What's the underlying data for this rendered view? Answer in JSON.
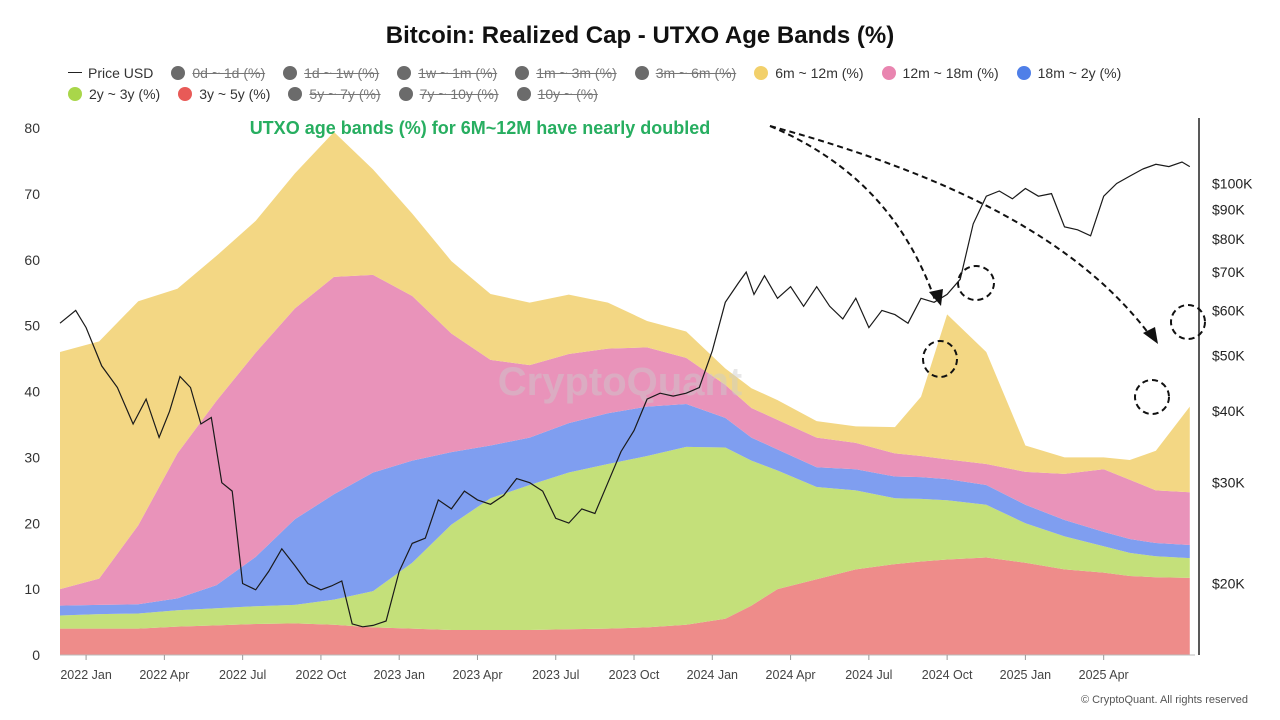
{
  "title": "Bitcoin: Realized Cap - UTXO Age Bands (%)",
  "legend": {
    "row1": [
      {
        "label": "Price USD",
        "kind": "line",
        "color": "#222222",
        "active": true
      },
      {
        "label": "0d ~ 1d (%)",
        "kind": "dot",
        "color": "#6b6b6b",
        "active": false
      },
      {
        "label": "1d ~ 1w (%)",
        "kind": "dot",
        "color": "#6b6b6b",
        "active": false
      },
      {
        "label": "1w ~ 1m (%)",
        "kind": "dot",
        "color": "#6b6b6b",
        "active": false
      },
      {
        "label": "1m ~ 3m (%)",
        "kind": "dot",
        "color": "#6b6b6b",
        "active": false
      },
      {
        "label": "3m ~ 6m (%)",
        "kind": "dot",
        "color": "#6b6b6b",
        "active": false
      },
      {
        "label": "6m ~ 12m (%)",
        "kind": "dot",
        "color": "#f2d06b",
        "active": true
      },
      {
        "label": "12m ~ 18m (%)",
        "kind": "dot",
        "color": "#e985b0",
        "active": true
      },
      {
        "label": "18m ~ 2y (%)",
        "kind": "dot",
        "color": "#4f7fe8",
        "active": true
      }
    ],
    "row2": [
      {
        "label": "2y ~ 3y (%)",
        "kind": "dot",
        "color": "#a9d64a",
        "active": true
      },
      {
        "label": "3y ~ 5y (%)",
        "kind": "dot",
        "color": "#e85a57",
        "active": true
      },
      {
        "label": "5y ~ 7y (%)",
        "kind": "dot",
        "color": "#6b6b6b",
        "active": false
      },
      {
        "label": "7y ~ 10y (%)",
        "kind": "dot",
        "color": "#6b6b6b",
        "active": false
      },
      {
        "label": "10y ~ (%)",
        "kind": "dot",
        "color": "#6b6b6b",
        "active": false
      }
    ]
  },
  "annotation": "UTXO age bands (%) for 6M~12M have nearly doubled",
  "watermark": "CryptoQuant",
  "copyright": "© CryptoQuant. All rights reserved",
  "chart_data": {
    "type": "area",
    "stacked": true,
    "x_ticks": [
      "2022 Jan",
      "2022 Apr",
      "2022 Jul",
      "2022 Oct",
      "2023 Jan",
      "2023 Apr",
      "2023 Jul",
      "2023 Oct",
      "2024 Jan",
      "2024 Apr",
      "2024 Jul",
      "2024 Oct",
      "2025 Jan",
      "2025 Apr"
    ],
    "x_tick_months": [
      3,
      6,
      9,
      12,
      15,
      18,
      21,
      24,
      27,
      30,
      33,
      36,
      39,
      42
    ],
    "x_range_months": [
      2,
      45.5
    ],
    "y_left_ticks": [
      0,
      10,
      20,
      30,
      40,
      50,
      60,
      70,
      80
    ],
    "y_left_range": [
      0,
      80
    ],
    "y_right_ticks": [
      {
        "label": "$20K",
        "value": 20000
      },
      {
        "label": "$30K",
        "value": 30000
      },
      {
        "label": "$40K",
        "value": 40000
      },
      {
        "label": "$50K",
        "value": 50000
      },
      {
        "label": "$60K",
        "value": 60000
      },
      {
        "label": "$70K",
        "value": 70000
      },
      {
        "label": "$80K",
        "value": 80000
      },
      {
        "label": "$90K",
        "value": 90000
      },
      {
        "label": "$100K",
        "value": 100000
      }
    ],
    "y_right_scale": "log",
    "y_right_range": [
      15000,
      125000
    ],
    "x_months": [
      2.0,
      3.5,
      5.0,
      6.5,
      8.0,
      9.5,
      11.0,
      12.5,
      14.0,
      15.5,
      17.0,
      18.5,
      20.0,
      21.5,
      23.0,
      24.5,
      26.0,
      27.5,
      28.5,
      29.5,
      31.0,
      32.5,
      34.0,
      35.0,
      36.0,
      37.5,
      39.0,
      40.5,
      42.0,
      43.0,
      44.0,
      45.3
    ],
    "series": [
      {
        "name": "3y ~ 5y (%)",
        "color": "#ee8c8a",
        "values": [
          4,
          4,
          4,
          4.3,
          4.5,
          4.7,
          4.8,
          4.6,
          4.2,
          4,
          3.8,
          3.8,
          3.8,
          3.9,
          4,
          4.2,
          4.6,
          5.5,
          7.5,
          10,
          11.5,
          13,
          13.8,
          14.2,
          14.5,
          14.8,
          14,
          13,
          12.5,
          12,
          11.8,
          11.7
        ]
      },
      {
        "name": "2y ~ 3y (%)",
        "color": "#c4e07a",
        "values": [
          2,
          2.2,
          2.3,
          2.5,
          2.6,
          2.7,
          2.8,
          3.8,
          5.5,
          10,
          16,
          20,
          22,
          23.8,
          25,
          26,
          27,
          26,
          22,
          18,
          14,
          12,
          10,
          9.5,
          9,
          8,
          6,
          5,
          4,
          3.5,
          3.2,
          3
        ]
      },
      {
        "name": "18m ~ 2y (%)",
        "color": "#7f9ef0",
        "values": [
          1.5,
          1.4,
          1.4,
          1.8,
          3.5,
          7.5,
          13,
          16,
          18,
          15.5,
          11,
          8,
          7.2,
          7.5,
          7.7,
          7.5,
          6.5,
          4.5,
          3.5,
          3.2,
          3,
          3.2,
          3.3,
          3.3,
          3.2,
          3,
          2.8,
          2.5,
          2.2,
          2.1,
          2,
          2
        ]
      },
      {
        "name": "12m ~ 18m (%)",
        "color": "#e993ba",
        "values": [
          2.5,
          4,
          12,
          22,
          28,
          31,
          32,
          33,
          30,
          25,
          18,
          13,
          11,
          10.5,
          9.8,
          9,
          7,
          5,
          4.5,
          4.5,
          4.5,
          4,
          3.5,
          3.2,
          3,
          3.2,
          5,
          7,
          9.5,
          9,
          8,
          8
        ]
      },
      {
        "name": "6m ~ 12m (%)",
        "color": "#f3d784",
        "values": [
          36,
          36,
          34,
          25,
          22,
          20,
          20.5,
          22,
          16,
          12.5,
          11,
          10,
          9.5,
          9,
          7,
          4,
          4,
          2.5,
          3,
          3,
          2.5,
          2.5,
          4,
          9,
          22,
          17,
          4,
          2.5,
          1.8,
          3,
          6,
          13
        ]
      }
    ],
    "price_series": {
      "name": "Price USD",
      "color": "#1a1a1a",
      "x_months": [
        2.0,
        2.6,
        3.0,
        3.6,
        4.2,
        4.8,
        5.3,
        5.8,
        6.2,
        6.6,
        7.0,
        7.4,
        7.8,
        8.2,
        8.6,
        9.0,
        9.5,
        10.0,
        10.5,
        11.0,
        11.5,
        12.0,
        12.4,
        12.8,
        13.2,
        13.6,
        14.0,
        14.5,
        15.0,
        15.5,
        16.0,
        16.5,
        17.0,
        17.5,
        18.0,
        18.5,
        19.0,
        19.5,
        20.0,
        20.5,
        21.0,
        21.5,
        22.0,
        22.5,
        23.0,
        23.5,
        24.0,
        24.5,
        25.0,
        25.5,
        26.0,
        26.5,
        27.0,
        27.5,
        28.0,
        28.3,
        28.6,
        29.0,
        29.5,
        30.0,
        30.5,
        31.0,
        31.5,
        32.0,
        32.5,
        33.0,
        33.5,
        34.0,
        34.5,
        35.0,
        35.5,
        36.0,
        36.5,
        37.0,
        37.5,
        38.0,
        38.5,
        39.0,
        39.5,
        40.0,
        40.5,
        41.0,
        41.5,
        42.0,
        42.5,
        43.0,
        43.5,
        44.0,
        44.5,
        45.0,
        45.3
      ],
      "values": [
        57000,
        60000,
        56000,
        48000,
        44000,
        38000,
        42000,
        36000,
        40000,
        46000,
        44000,
        38000,
        39000,
        30000,
        29000,
        20000,
        19500,
        21000,
        23000,
        21500,
        20000,
        19500,
        19800,
        20200,
        17000,
        16800,
        16900,
        17200,
        21000,
        23500,
        24000,
        28000,
        27000,
        29000,
        28000,
        27500,
        28500,
        30500,
        30000,
        29000,
        26000,
        25500,
        27000,
        26500,
        30000,
        34000,
        37000,
        42000,
        43000,
        42500,
        43000,
        44000,
        51000,
        62000,
        67000,
        70000,
        64000,
        69000,
        63000,
        66000,
        61000,
        66000,
        61000,
        58000,
        63000,
        56000,
        60000,
        59000,
        57000,
        63000,
        62000,
        64000,
        68000,
        85000,
        95000,
        97000,
        94000,
        98000,
        95000,
        96000,
        84000,
        83000,
        81000,
        95000,
        100000,
        103000,
        106000,
        108000,
        107000,
        109000,
        107000
      ]
    }
  }
}
